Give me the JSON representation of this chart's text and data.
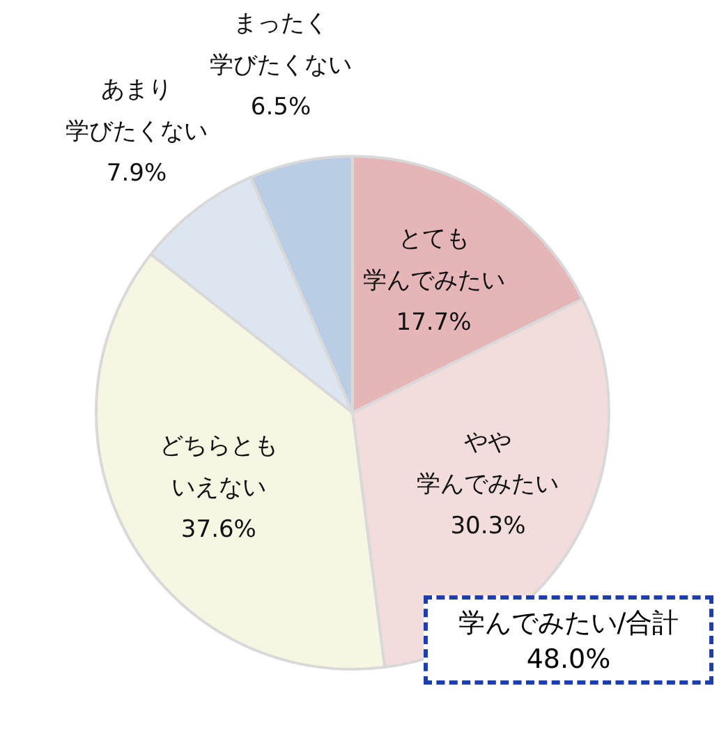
{
  "chart_data": {
    "type": "pie",
    "categories": [
      "とても学んでみたい",
      "やや学んでみたい",
      "どちらともいえない",
      "あまり学びたくない",
      "まったく学びたくない"
    ],
    "values": [
      17.7,
      30.3,
      37.6,
      7.9,
      6.5
    ],
    "colors": [
      "#e6b5b8",
      "#f2dcdc",
      "#f6f6e2",
      "#dde5f1",
      "#b9cde5"
    ],
    "value_labels": [
      "17.7%",
      "30.3%",
      "37.6%",
      "7.9%",
      "6.5%"
    ],
    "annotations": [
      "学んでみたい/合計\n48.0%"
    ]
  }
}
